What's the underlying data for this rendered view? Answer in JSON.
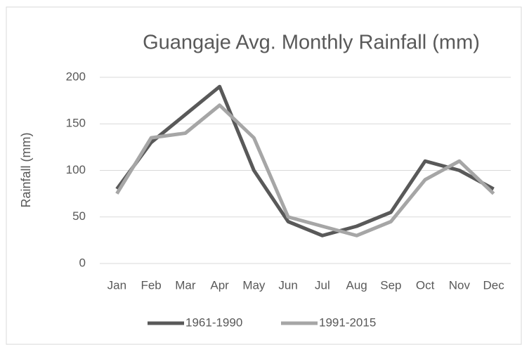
{
  "chart_data": {
    "type": "line",
    "title": "Guangaje Avg. Monthly Rainfall (mm)",
    "ylabel": "Rainfall (mm)",
    "categories": [
      "Jan",
      "Feb",
      "Mar",
      "Apr",
      "May",
      "Jun",
      "Jul",
      "Aug",
      "Sep",
      "Oct",
      "Nov",
      "Dec"
    ],
    "series": [
      {
        "name": "1961-1990",
        "color": "#595959",
        "values": [
          80,
          130,
          160,
          190,
          100,
          45,
          30,
          40,
          55,
          110,
          100,
          80
        ]
      },
      {
        "name": "1991-2015",
        "color": "#a6a6a6",
        "values": [
          75,
          135,
          140,
          170,
          135,
          50,
          40,
          30,
          45,
          90,
          110,
          75
        ]
      }
    ],
    "ylim": [
      0,
      200
    ],
    "yticks": [
      0,
      50,
      100,
      150,
      200
    ],
    "grid": true,
    "legend": "bottom"
  }
}
